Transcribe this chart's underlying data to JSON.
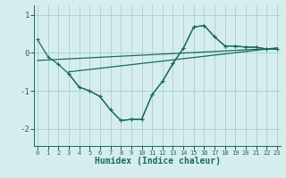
{
  "line_x": [
    0,
    1,
    2,
    3,
    4,
    5,
    6,
    7,
    8,
    9,
    10,
    11,
    12,
    13,
    14,
    15,
    16,
    17,
    18,
    19,
    20,
    21,
    22,
    23
  ],
  "line_y1": [
    0.35,
    -0.1,
    -0.3,
    -0.55,
    -0.9,
    -1.0,
    -1.15,
    -1.5,
    -1.78,
    -1.75,
    -1.75,
    -1.1,
    -0.75,
    -0.28,
    0.12,
    0.68,
    0.72,
    0.42,
    0.18,
    0.18,
    0.15,
    0.15,
    0.1,
    0.1
  ],
  "line_x2": [
    3,
    4,
    5,
    6,
    7,
    8,
    9,
    10,
    11,
    12,
    13,
    14,
    15,
    16,
    17,
    18,
    19,
    20,
    21,
    22,
    23
  ],
  "line_y2": [
    -0.55,
    -0.9,
    -1.0,
    -1.15,
    -1.5,
    -1.78,
    -1.75,
    -1.75,
    -1.1,
    -0.75,
    -0.28,
    0.12,
    0.68,
    0.72,
    0.42,
    0.18,
    0.18,
    0.15,
    0.15,
    0.1,
    0.1
  ],
  "trend1_x": [
    0,
    23
  ],
  "trend1_y": [
    -0.2,
    0.12
  ],
  "trend2_x": [
    3,
    23
  ],
  "trend2_y": [
    -0.5,
    0.13
  ],
  "bg_color": "#d5eeed",
  "grid_color": "#afd4cf",
  "line_color": "#1a6b5a",
  "xlabel": "Humidex (Indice chaleur)",
  "ytick_labels": [
    "-2",
    "-1",
    "0",
    "1"
  ],
  "ytick_vals": [
    -2,
    -1,
    0,
    1
  ],
  "xtick_vals": [
    0,
    1,
    2,
    3,
    4,
    5,
    6,
    7,
    8,
    9,
    10,
    11,
    12,
    13,
    14,
    15,
    16,
    17,
    18,
    19,
    20,
    21,
    22,
    23
  ],
  "xlim": [
    -0.3,
    23.3
  ],
  "ylim": [
    -2.45,
    1.25
  ],
  "figsize": [
    3.2,
    2.0
  ],
  "dpi": 100
}
